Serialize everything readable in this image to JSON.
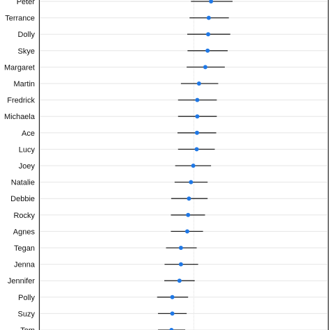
{
  "chart_data": {
    "type": "scatter",
    "style": "dot-and-whisker",
    "orientation": "horizontal",
    "grid": true,
    "legend": "none",
    "point_color": "#1f78e6",
    "whisker_color": "#222222",
    "xlim": [
      0,
      1
    ],
    "reference_x": 0.535,
    "rows": [
      {
        "label": "Peter",
        "estimate": 0.595,
        "low": 0.525,
        "high": 0.67
      },
      {
        "label": "Terrance",
        "estimate": 0.587,
        "low": 0.52,
        "high": 0.657
      },
      {
        "label": "Dolly",
        "estimate": 0.585,
        "low": 0.512,
        "high": 0.662
      },
      {
        "label": "Skye",
        "estimate": 0.583,
        "low": 0.513,
        "high": 0.653
      },
      {
        "label": "Margaret",
        "estimate": 0.575,
        "low": 0.51,
        "high": 0.643
      },
      {
        "label": "Martin",
        "estimate": 0.553,
        "low": 0.49,
        "high": 0.62
      },
      {
        "label": "Fredrick",
        "estimate": 0.547,
        "low": 0.48,
        "high": 0.615
      },
      {
        "label": "Michaela",
        "estimate": 0.547,
        "low": 0.48,
        "high": 0.615
      },
      {
        "label": "Ace",
        "estimate": 0.546,
        "low": 0.478,
        "high": 0.613
      },
      {
        "label": "Lucy",
        "estimate": 0.545,
        "low": 0.48,
        "high": 0.608
      },
      {
        "label": "Joey",
        "estimate": 0.533,
        "low": 0.47,
        "high": 0.595
      },
      {
        "label": "Natalie",
        "estimate": 0.525,
        "low": 0.468,
        "high": 0.583
      },
      {
        "label": "Debbie",
        "estimate": 0.518,
        "low": 0.456,
        "high": 0.583
      },
      {
        "label": "Rocky",
        "estimate": 0.515,
        "low": 0.455,
        "high": 0.574
      },
      {
        "label": "Agnes",
        "estimate": 0.512,
        "low": 0.455,
        "high": 0.567
      },
      {
        "label": "Tegan",
        "estimate": 0.49,
        "low": 0.438,
        "high": 0.545
      },
      {
        "label": "Jenna",
        "estimate": 0.49,
        "low": 0.433,
        "high": 0.55
      },
      {
        "label": "Jennifer",
        "estimate": 0.485,
        "low": 0.432,
        "high": 0.538
      },
      {
        "label": "Polly",
        "estimate": 0.46,
        "low": 0.407,
        "high": 0.515
      },
      {
        "label": "Suzy",
        "estimate": 0.46,
        "low": 0.41,
        "high": 0.51
      },
      {
        "label": "Tom",
        "estimate": 0.457,
        "low": 0.41,
        "high": 0.505
      }
    ]
  }
}
